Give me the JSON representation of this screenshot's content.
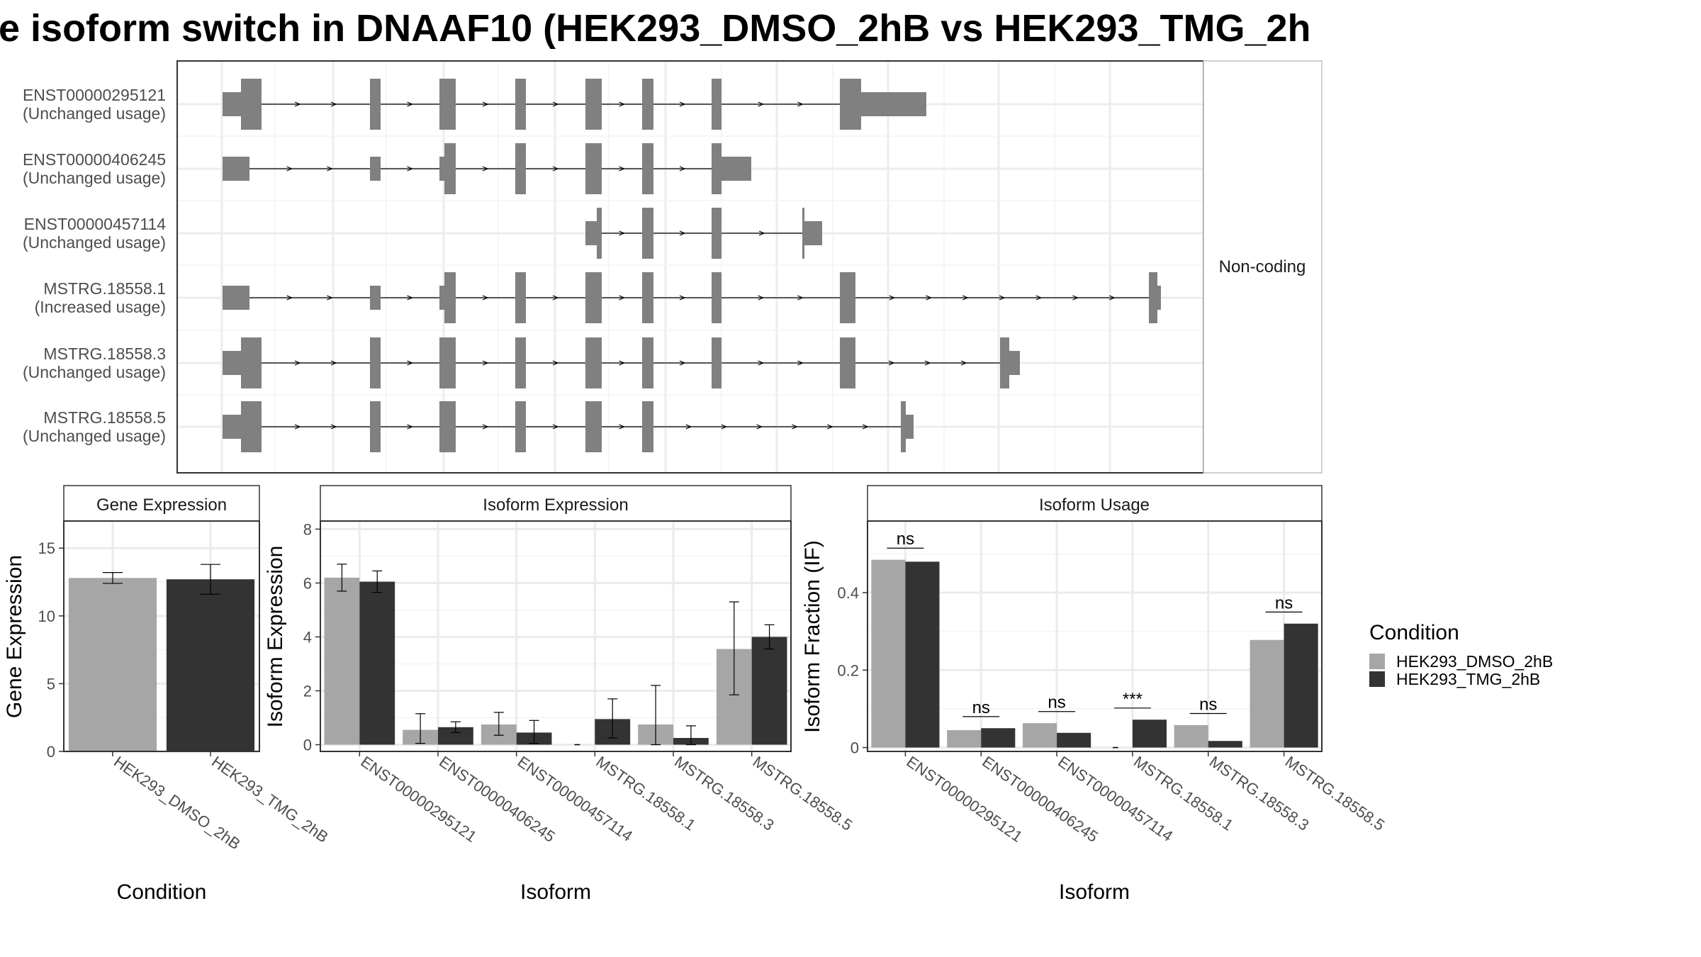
{
  "title": "e isoform switch in DNAAF10 (HEK293_DMSO_2hB vs HEK293_TMG_2h",
  "colors": {
    "dmso": "#a6a6a6",
    "tmg": "#333333",
    "exon": "#808080",
    "strip_bg": "#ffffff",
    "grid": "#ebebeb"
  },
  "structure": {
    "strip_label": "Non-coding",
    "transcripts": [
      {
        "id": "ENST00000295121",
        "usage": "(Unchanged usage)"
      },
      {
        "id": "ENST00000406245",
        "usage": "(Unchanged usage)"
      },
      {
        "id": "ENST00000457114",
        "usage": "(Unchanged usage)"
      },
      {
        "id": "MSTRG.18558.1",
        "usage": "(Increased usage)"
      },
      {
        "id": "MSTRG.18558.3",
        "usage": "(Unchanged usage)"
      },
      {
        "id": "MSTRG.18558.5",
        "usage": "(Unchanged usage)"
      }
    ]
  },
  "chart_data": [
    {
      "type": "bar",
      "title": "Gene Expression",
      "xlabel": "Condition",
      "ylabel": "Gene Expression",
      "categories": [
        "HEK293_DMSO_2hB",
        "HEK293_TMG_2hB"
      ],
      "values": [
        12.8,
        12.7
      ],
      "error_low": [
        12.4,
        11.6
      ],
      "error_high": [
        13.2,
        13.8
      ],
      "ylim": [
        0,
        17
      ],
      "yticks": [
        0,
        5,
        10,
        15
      ]
    },
    {
      "type": "bar",
      "title": "Isoform Expression",
      "xlabel": "Isoform",
      "ylabel": "Isoform Expression",
      "categories": [
        "ENST00000295121",
        "ENST00000406245",
        "ENST00000457114",
        "MSTRG.18558.1",
        "MSTRG.18558.3",
        "MSTRG.18558.5"
      ],
      "series": [
        {
          "name": "HEK293_DMSO_2hB",
          "values": [
            6.2,
            0.55,
            0.75,
            0.0,
            0.75,
            3.55
          ],
          "error_low": [
            5.7,
            0.05,
            0.35,
            0.0,
            0.0,
            1.85
          ],
          "error_high": [
            6.7,
            1.15,
            1.2,
            0.0,
            2.2,
            5.3
          ]
        },
        {
          "name": "HEK293_TMG_2hB",
          "values": [
            6.05,
            0.65,
            0.45,
            0.95,
            0.25,
            4.0
          ],
          "error_low": [
            5.65,
            0.45,
            0.05,
            0.25,
            0.0,
            3.55
          ],
          "error_high": [
            6.45,
            0.85,
            0.9,
            1.7,
            0.7,
            4.45
          ]
        }
      ],
      "ylim": [
        -0.25,
        8.3
      ],
      "yticks": [
        0,
        2,
        4,
        6,
        8
      ]
    },
    {
      "type": "bar",
      "title": "Isoform Usage",
      "xlabel": "Isoform",
      "ylabel": "Isoform Fraction (IF)",
      "categories": [
        "ENST00000295121",
        "ENST00000406245",
        "ENST00000457114",
        "MSTRG.18558.1",
        "MSTRG.18558.3",
        "MSTRG.18558.5"
      ],
      "series": [
        {
          "name": "HEK293_DMSO_2hB",
          "values": [
            0.485,
            0.045,
            0.063,
            0.0,
            0.058,
            0.278
          ]
        },
        {
          "name": "HEK293_TMG_2hB",
          "values": [
            0.48,
            0.05,
            0.038,
            0.072,
            0.017,
            0.32
          ]
        }
      ],
      "significance": [
        "ns",
        "ns",
        "ns",
        "***",
        "ns",
        "ns"
      ],
      "ylim": [
        -0.01,
        0.585
      ],
      "yticks": [
        0.0,
        0.2,
        0.4
      ]
    }
  ],
  "legend": {
    "title": "Condition",
    "items": [
      "HEK293_DMSO_2hB",
      "HEK293_TMG_2hB"
    ]
  }
}
